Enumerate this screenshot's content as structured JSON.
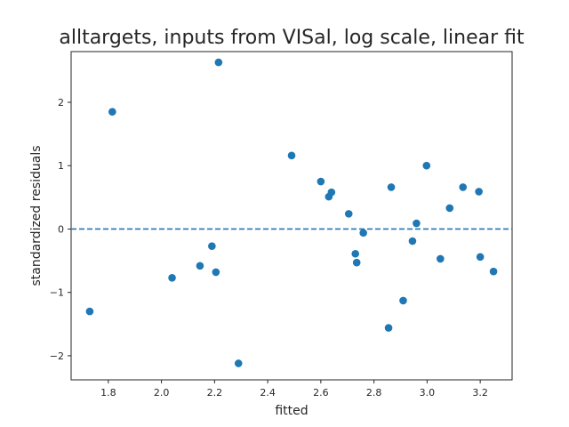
{
  "chart_data": {
    "type": "scatter",
    "title": "alltargets, inputs from VISal, log scale, linear fit",
    "xlabel": "fitted",
    "ylabel": "standardized residuals",
    "xlim": [
      1.66,
      3.32
    ],
    "ylim": [
      -2.38,
      2.8
    ],
    "xticks": [
      1.8,
      2.0,
      2.2,
      2.4,
      2.6,
      2.8,
      3.0,
      3.2
    ],
    "xtick_labels": [
      "1.8",
      "2.0",
      "2.2",
      "2.4",
      "2.6",
      "2.8",
      "3.0",
      "3.2"
    ],
    "yticks": [
      -2,
      -1,
      0,
      1,
      2
    ],
    "ytick_labels": [
      "−2",
      "−1",
      "0",
      "1",
      "2"
    ],
    "grid": false,
    "reference_line": {
      "y": 0,
      "style": "dashed"
    },
    "colors": {
      "points": "#1f77b4",
      "reference_line": "#1f77b4",
      "axes": "#262626"
    },
    "series": [
      {
        "x": [
          1.73,
          1.815,
          2.04,
          2.145,
          2.19,
          2.205,
          2.215,
          2.29,
          2.49,
          2.6,
          2.63,
          2.64,
          2.705,
          2.73,
          2.735,
          2.76,
          2.855,
          2.865,
          2.91,
          2.945,
          2.96,
          2.998,
          3.05,
          3.085,
          3.135,
          3.195,
          3.2,
          3.25
        ],
        "y": [
          -1.3,
          1.85,
          -0.77,
          -0.58,
          -0.27,
          -0.68,
          2.63,
          -2.12,
          1.16,
          0.75,
          0.51,
          0.58,
          0.24,
          -0.39,
          -0.53,
          -0.06,
          -1.56,
          0.66,
          -1.13,
          -0.19,
          0.09,
          1.0,
          -0.47,
          0.33,
          0.66,
          0.59,
          -0.44,
          -0.67
        ]
      }
    ]
  }
}
